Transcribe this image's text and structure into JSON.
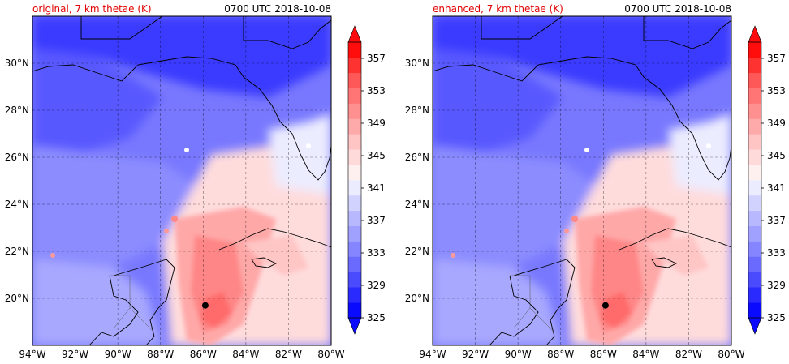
{
  "chart_data": [
    {
      "type": "heatmap",
      "title": "original, 7 km thetae (K)",
      "title_right": "0700 UTC 2018-10-08",
      "x_ticks": [
        "94°W",
        "92°W",
        "90°W",
        "88°W",
        "86°W",
        "84°W",
        "82°W",
        "80°W"
      ],
      "y_ticks": [
        "20°N",
        "22°N",
        "24°N",
        "26°N",
        "28°N",
        "30°N"
      ],
      "xlim": [
        -94,
        -80
      ],
      "ylim": [
        18,
        32
      ],
      "grid": true,
      "colorbar": {
        "levels": [
          325,
          327,
          329,
          331,
          333,
          335,
          337,
          339,
          341,
          343,
          345,
          347,
          349,
          351,
          353,
          355,
          357,
          359
        ],
        "tick_labels": [
          "357",
          "353",
          "349",
          "345",
          "341",
          "337",
          "333",
          "329",
          "325"
        ],
        "colors": [
          "#0a0aff",
          "#2a2aff",
          "#4a4aff",
          "#6a6aff",
          "#8585ff",
          "#a0a0ff",
          "#b8b8ff",
          "#d2d2ff",
          "#ececff",
          "#fff0f0",
          "#ffdada",
          "#ffc4c4",
          "#ffaaaa",
          "#ff9090",
          "#ff7474",
          "#ff5858",
          "#ff3232",
          "#ff0c0c"
        ],
        "extend": "both"
      },
      "marker": {
        "lon": -85.9,
        "lat": 19.7
      }
    },
    {
      "type": "heatmap",
      "title": "enhanced, 7 km thetae (K)",
      "title_right": "0700 UTC 2018-10-08",
      "x_ticks": [
        "94°W",
        "92°W",
        "90°W",
        "88°W",
        "86°W",
        "84°W",
        "82°W",
        "80°W"
      ],
      "y_ticks": [
        "20°N",
        "22°N",
        "24°N",
        "26°N",
        "28°N",
        "30°N"
      ],
      "xlim": [
        -94,
        -80
      ],
      "ylim": [
        18,
        32
      ],
      "grid": true,
      "colorbar": {
        "levels": [
          325,
          327,
          329,
          331,
          333,
          335,
          337,
          339,
          341,
          343,
          345,
          347,
          349,
          351,
          353,
          355,
          357,
          359
        ],
        "tick_labels": [
          "357",
          "353",
          "349",
          "345",
          "341",
          "337",
          "333",
          "329",
          "325"
        ],
        "colors": [
          "#0a0aff",
          "#2a2aff",
          "#4a4aff",
          "#6a6aff",
          "#8585ff",
          "#a0a0ff",
          "#b8b8ff",
          "#d2d2ff",
          "#ececff",
          "#fff0f0",
          "#ffdada",
          "#ffc4c4",
          "#ffaaaa",
          "#ff9090",
          "#ff7474",
          "#ff5858",
          "#ff3232",
          "#ff0c0c"
        ],
        "extend": "both"
      },
      "marker": {
        "lon": -85.9,
        "lat": 19.7
      }
    }
  ]
}
